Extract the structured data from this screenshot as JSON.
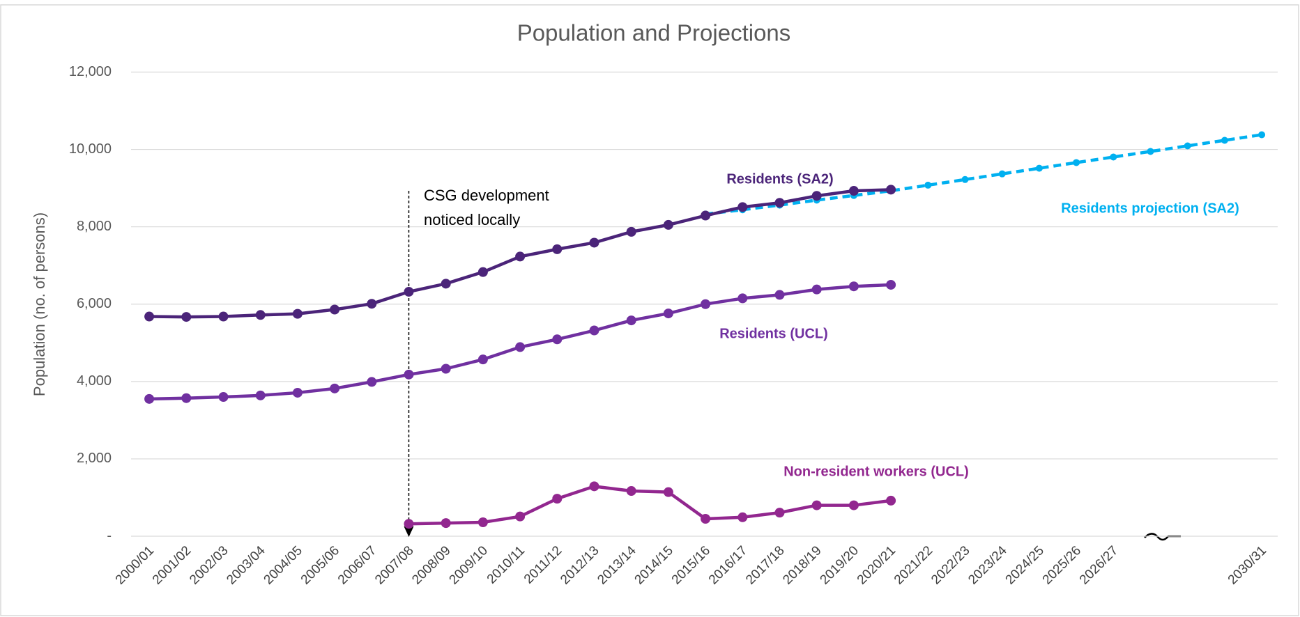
{
  "chart_data": {
    "type": "line",
    "title": "Population and Projections",
    "y_label": "Population (no. of persons)",
    "categories": [
      "2000/01",
      "2001/02",
      "2002/03",
      "2003/04",
      "2004/05",
      "2005/06",
      "2006/07",
      "2007/08",
      "2008/09",
      "2009/10",
      "2010/11",
      "2011/12",
      "2012/13",
      "2013/14",
      "2014/15",
      "2015/16",
      "2016/17",
      "2017/18",
      "2018/19",
      "2019/20",
      "2020/21",
      "2021/22",
      "2022/23",
      "2023/24",
      "2024/25",
      "2025/26",
      "2026/27",
      null,
      null,
      null,
      "2030/31"
    ],
    "series": [
      {
        "name": "Residents (SA2)",
        "color": "#4b2479",
        "dashed": false,
        "values": [
          5680,
          5670,
          5680,
          5720,
          5750,
          5860,
          6010,
          6320,
          6530,
          6830,
          7230,
          7420,
          7590,
          7870,
          8050,
          8290,
          8510,
          8620,
          8800,
          8930,
          8960,
          null,
          null,
          null,
          null,
          null,
          null,
          null,
          null,
          null,
          null
        ]
      },
      {
        "name": "Residents (UCL)",
        "color": "#7030a0",
        "dashed": false,
        "values": [
          3550,
          3570,
          3600,
          3640,
          3710,
          3820,
          3990,
          4180,
          4330,
          4570,
          4890,
          5090,
          5320,
          5580,
          5760,
          6000,
          6150,
          6240,
          6380,
          6460,
          6500,
          null,
          null,
          null,
          null,
          null,
          null,
          null,
          null,
          null,
          null
        ]
      },
      {
        "name": "Non-resident workers (UCL)",
        "color": "#92278f",
        "dashed": false,
        "values": [
          null,
          null,
          null,
          null,
          null,
          null,
          null,
          320,
          340,
          360,
          510,
          970,
          1290,
          1170,
          1140,
          450,
          490,
          610,
          800,
          800,
          920,
          null,
          null,
          null,
          null,
          null,
          null,
          null,
          null,
          null,
          null
        ]
      },
      {
        "name": "Residents projection (SA2)",
        "color": "#00b0f0",
        "dashed": true,
        "values": [
          null,
          null,
          null,
          null,
          null,
          null,
          null,
          null,
          null,
          null,
          null,
          null,
          null,
          null,
          null,
          8330,
          8440,
          8560,
          8690,
          8810,
          8930,
          9076,
          9222,
          9368,
          9514,
          9660,
          9804,
          9948,
          10092,
          10236,
          10380
        ]
      }
    ],
    "ylim": [
      0,
      12000
    ],
    "yticks": [
      {
        "value": 0,
        "label": "-"
      },
      {
        "value": 2000,
        "label": "2,000"
      },
      {
        "value": 4000,
        "label": "4,000"
      },
      {
        "value": 6000,
        "label": "6,000"
      },
      {
        "value": 8000,
        "label": "8,000"
      },
      {
        "value": 10000,
        "label": "10,000"
      },
      {
        "value": 12000,
        "label": "12,000"
      }
    ],
    "grid": true,
    "annotation": {
      "lines": [
        "CSG development",
        "noticed locally"
      ],
      "category": "2007/08"
    }
  }
}
